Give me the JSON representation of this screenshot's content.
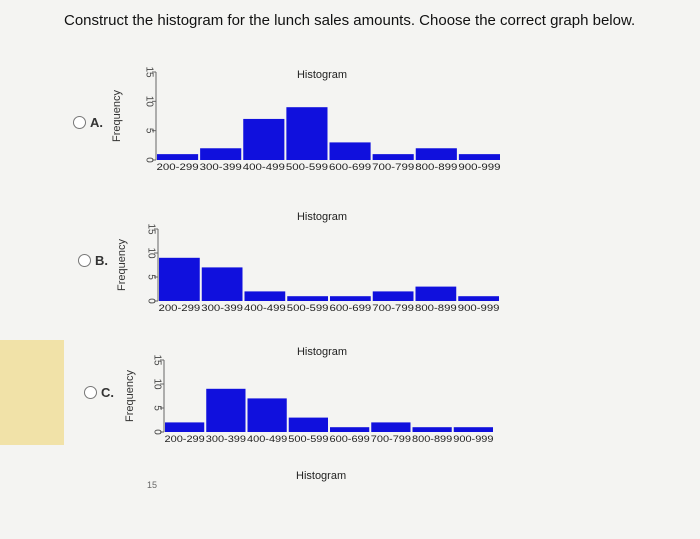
{
  "question": "Construct the histogram for the lunch sales amounts. Choose the correct graph below.",
  "options": [
    {
      "label": "A."
    },
    {
      "label": "B."
    },
    {
      "label": "C."
    }
  ],
  "chart_data": [
    {
      "type": "bar",
      "title": "Histogram",
      "ylabel": "Frequency",
      "xlabel": "",
      "categories": [
        "200-299",
        "300-399",
        "400-499",
        "500-599",
        "600-699",
        "700-799",
        "800-899",
        "900-999"
      ],
      "values": [
        1,
        2,
        7,
        9,
        3,
        1,
        2,
        1
      ],
      "ylim": [
        0,
        15
      ],
      "yticks": [
        "0",
        "5",
        "10",
        "15"
      ],
      "bar_color": "#1010dd"
    },
    {
      "type": "bar",
      "title": "Histogram",
      "ylabel": "Frequency",
      "xlabel": "",
      "categories": [
        "200-299",
        "300-399",
        "400-499",
        "500-599",
        "600-699",
        "700-799",
        "800-899",
        "900-999"
      ],
      "values": [
        9,
        7,
        2,
        1,
        1,
        2,
        3,
        1
      ],
      "ylim": [
        0,
        15
      ],
      "yticks": [
        "0",
        "5",
        "10",
        "15"
      ],
      "bar_color": "#1010dd"
    },
    {
      "type": "bar",
      "title": "Histogram",
      "ylabel": "Frequency",
      "xlabel": "",
      "categories": [
        "200-299",
        "300-399",
        "400-499",
        "500-599",
        "600-699",
        "700-799",
        "800-899",
        "900-999"
      ],
      "values": [
        2,
        9,
        7,
        3,
        1,
        2,
        1,
        1
      ],
      "ylim": [
        0,
        15
      ],
      "yticks": [
        "0",
        "5",
        "10",
        "15"
      ],
      "bar_color": "#1010dd"
    }
  ],
  "partial_chart": {
    "title": "Histogram",
    "tick": "15"
  }
}
